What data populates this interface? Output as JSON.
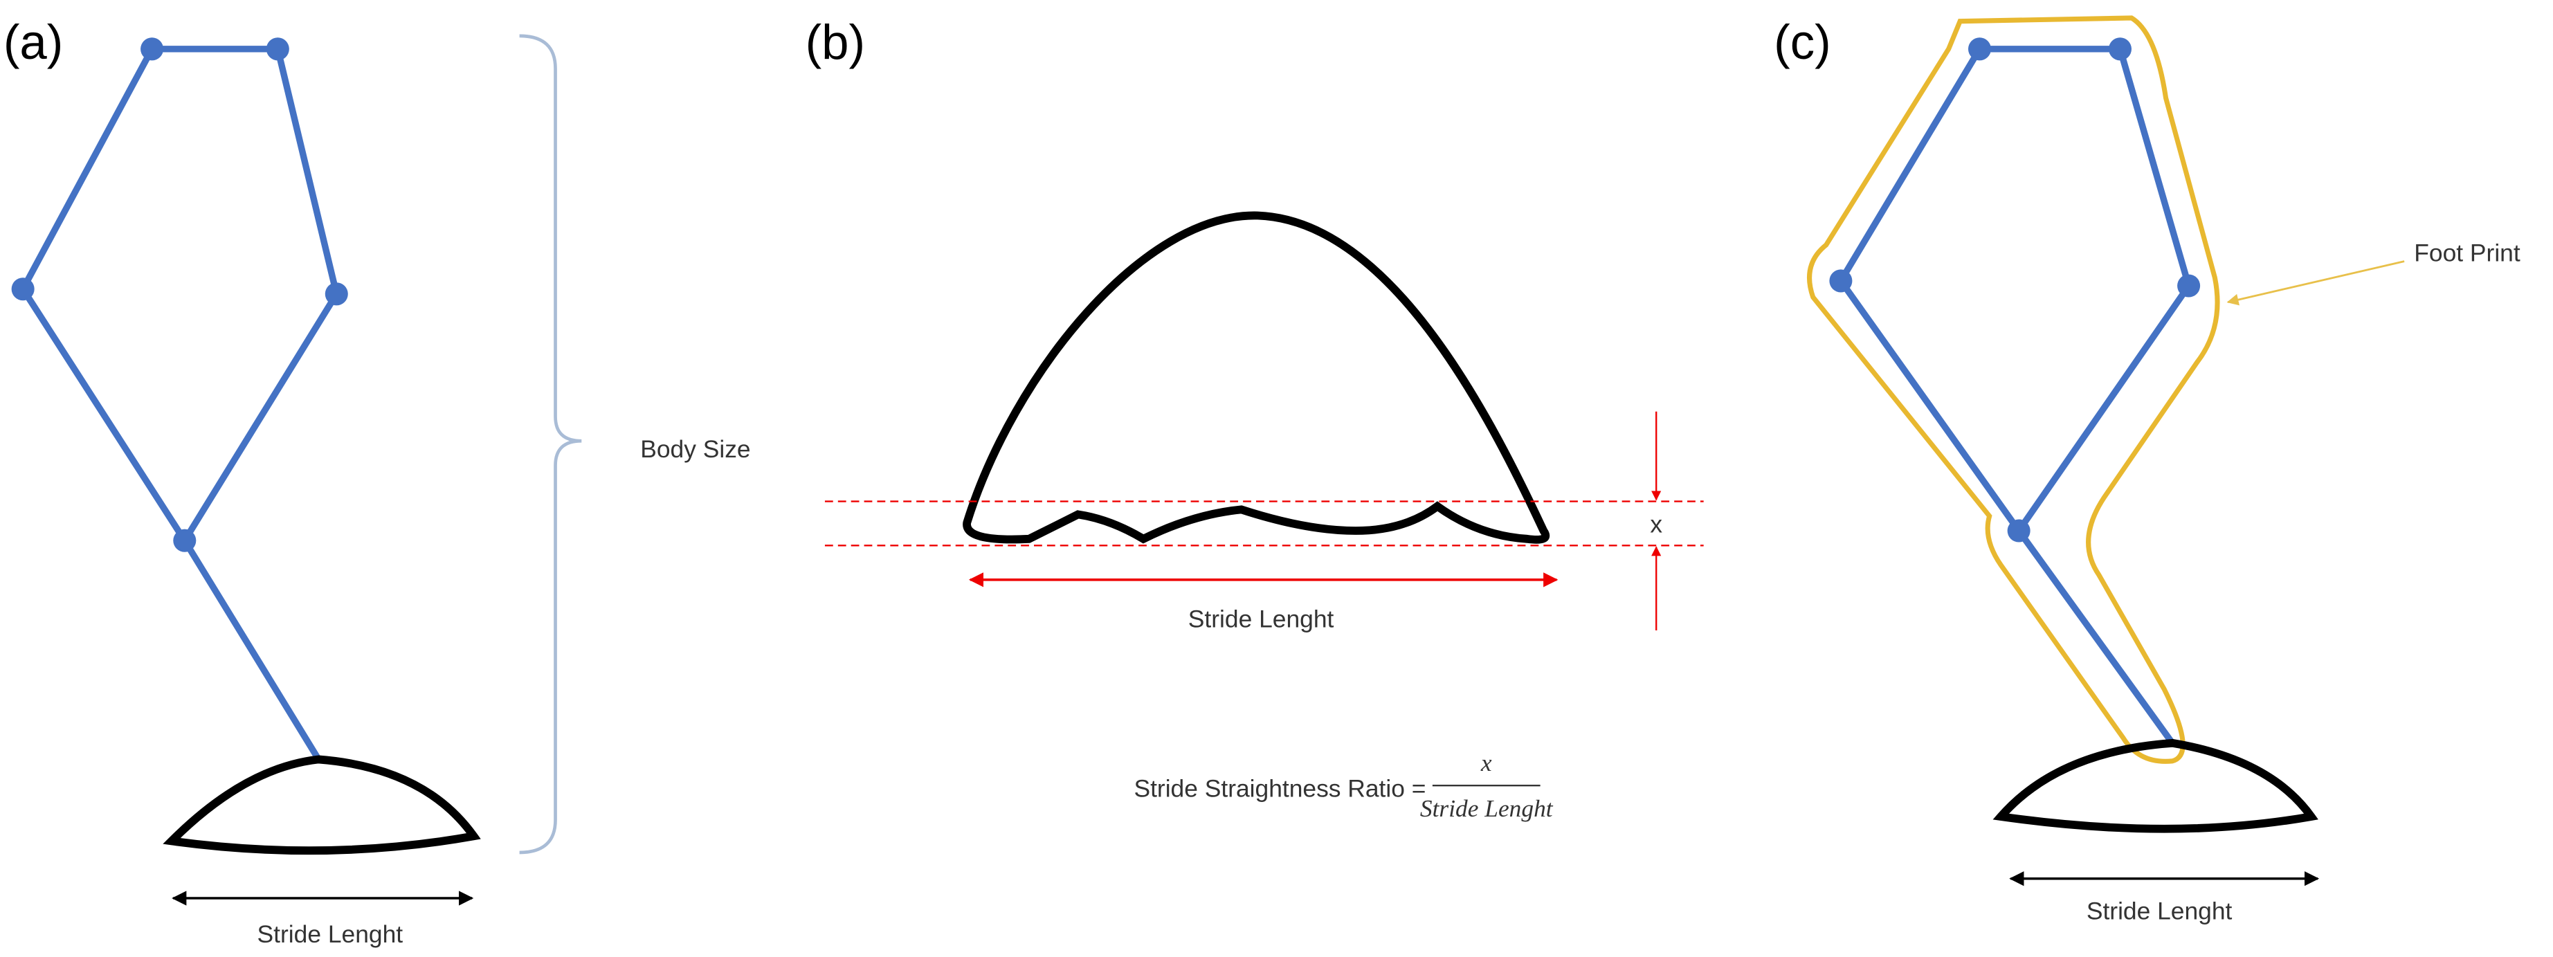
{
  "panels": [
    {
      "label": "(a)",
      "body_size": "Body Size",
      "stride": "Stride Lenght"
    },
    {
      "label": "(b)",
      "offset": "x",
      "stride": "Stride Lenght",
      "formula": {
        "lhs": "Stride Straightness Ratio =",
        "numerator": "x",
        "denominator": "Stride Lenght"
      }
    },
    {
      "label": "(c)",
      "footprint": "Foot Print",
      "stride": "Stride Lenght"
    }
  ]
}
